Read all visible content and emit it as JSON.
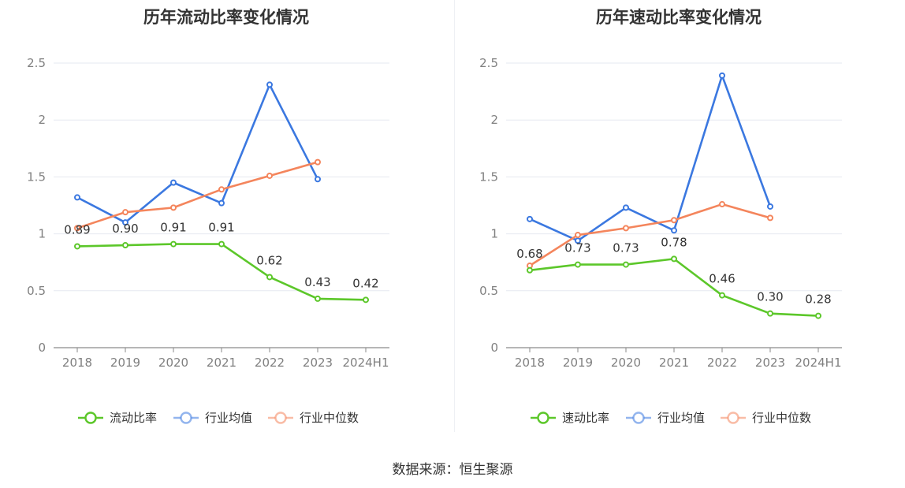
{
  "source_text": "数据来源：恒生聚源",
  "colors": {
    "green": "#5cc72a",
    "blue": "#3b78e0",
    "orange": "#f4855c"
  },
  "chart_data": [
    {
      "type": "line",
      "title": "历年流动比率变化情况",
      "categories": [
        "2018",
        "2019",
        "2020",
        "2021",
        "2022",
        "2023",
        "2024H1"
      ],
      "ylim": [
        0,
        2.5
      ],
      "yticks": [
        "0",
        "0.5",
        "1",
        "1.5",
        "2",
        "2.5"
      ],
      "grid": true,
      "legend_position": "bottom",
      "series": [
        {
          "name": "流动比率",
          "color": "#5cc72a",
          "values": [
            0.89,
            0.9,
            0.91,
            0.91,
            0.62,
            0.43,
            0.42
          ],
          "labels": [
            "0.89",
            "0.90",
            "0.91",
            "0.91",
            "0.62",
            "0.43",
            "0.42"
          ]
        },
        {
          "name": "行业均值",
          "color": "#3b78e0",
          "values": [
            1.32,
            1.1,
            1.45,
            1.27,
            2.31,
            1.48,
            null
          ]
        },
        {
          "name": "行业中位数",
          "color": "#f4855c",
          "values": [
            1.05,
            1.19,
            1.23,
            1.39,
            1.51,
            1.63,
            null
          ]
        }
      ]
    },
    {
      "type": "line",
      "title": "历年速动比率变化情况",
      "categories": [
        "2018",
        "2019",
        "2020",
        "2021",
        "2022",
        "2023",
        "2024H1"
      ],
      "ylim": [
        0,
        2.5
      ],
      "yticks": [
        "0",
        "0.5",
        "1",
        "1.5",
        "2",
        "2.5"
      ],
      "grid": true,
      "legend_position": "bottom",
      "series": [
        {
          "name": "速动比率",
          "color": "#5cc72a",
          "values": [
            0.68,
            0.73,
            0.73,
            0.78,
            0.46,
            0.3,
            0.28
          ],
          "labels": [
            "0.68",
            "0.73",
            "0.73",
            "0.78",
            "0.46",
            "0.30",
            "0.28"
          ]
        },
        {
          "name": "行业均值",
          "color": "#3b78e0",
          "values": [
            1.13,
            0.94,
            1.23,
            1.03,
            2.39,
            1.24,
            null
          ]
        },
        {
          "name": "行业中位数",
          "color": "#f4855c",
          "values": [
            0.72,
            0.99,
            1.05,
            1.12,
            1.26,
            1.14,
            null
          ]
        }
      ]
    }
  ]
}
